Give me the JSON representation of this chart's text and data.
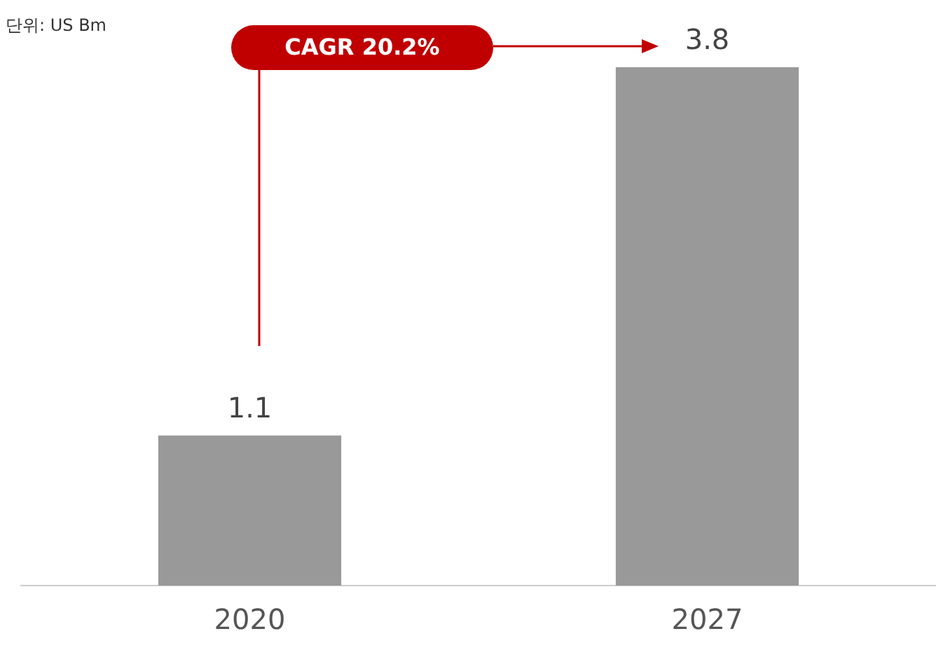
{
  "chart_data": {
    "type": "bar",
    "categories": [
      "2020",
      "2027"
    ],
    "values": [
      1.1,
      3.8
    ],
    "color": "#999999",
    "data_labels": true,
    "grid": false,
    "legend": false,
    "tick_labels": "x",
    "annotations": [
      "단위: US Bm",
      "CAGR 20.2%"
    ]
  }
}
